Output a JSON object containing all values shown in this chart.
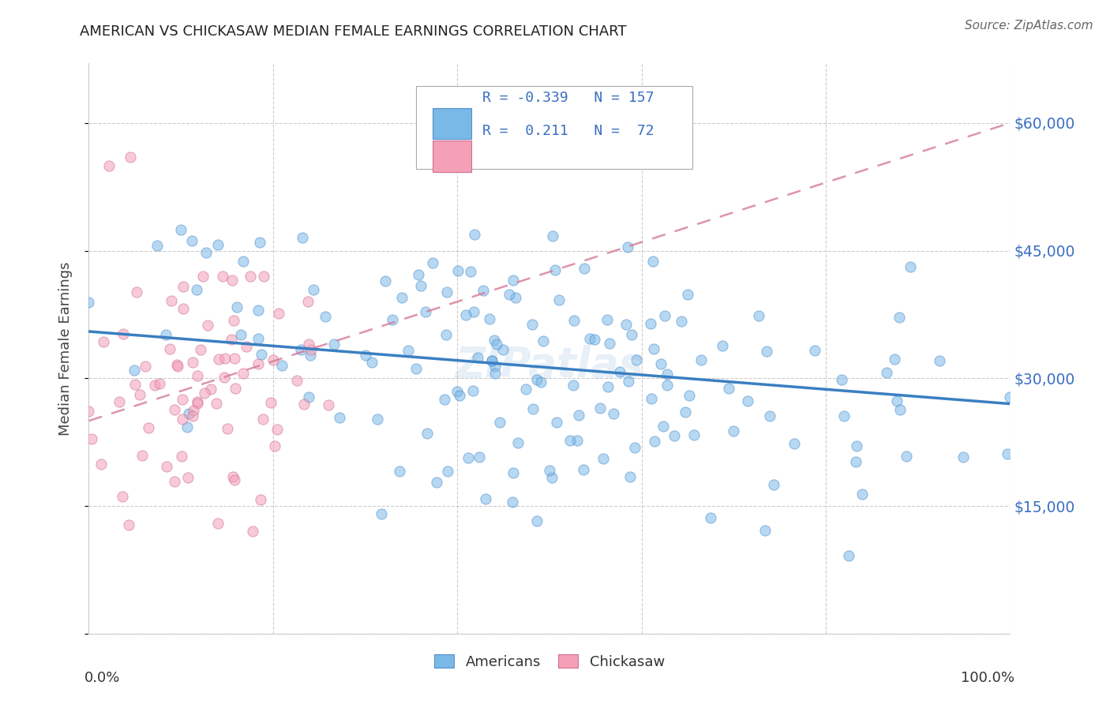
{
  "title": "AMERICAN VS CHICKASAW MEDIAN FEMALE EARNINGS CORRELATION CHART",
  "source": "Source: ZipAtlas.com",
  "ylabel": "Median Female Earnings",
  "ytick_values": [
    0,
    15000,
    30000,
    45000,
    60000
  ],
  "ytick_labels": [
    "",
    "$15,000",
    "$30,000",
    "$45,000",
    "$60,000"
  ],
  "ylim": [
    0,
    67000
  ],
  "xlim": [
    0.0,
    1.0
  ],
  "blue_color": "#7ab8e8",
  "blue_edge": "#5590cc",
  "pink_color": "#f4a0b8",
  "pink_edge": "#d07090",
  "blue_line_color": "#3a7fc1",
  "pink_line_color": "#d47090",
  "right_label_color": "#3a6fc1",
  "watermark": "ZIPatlas",
  "legend_R_blue": "R = -0.339",
  "legend_N_blue": "N = 157",
  "legend_R_pink": "R =  0.211",
  "legend_N_pink": "N =  72",
  "blue_line_x0": 0.0,
  "blue_line_y0": 35500,
  "blue_line_x1": 1.0,
  "blue_line_y1": 27000,
  "pink_line_x0": 0.0,
  "pink_line_y0": 25000,
  "pink_line_x1": 1.0,
  "pink_line_y1": 60000
}
